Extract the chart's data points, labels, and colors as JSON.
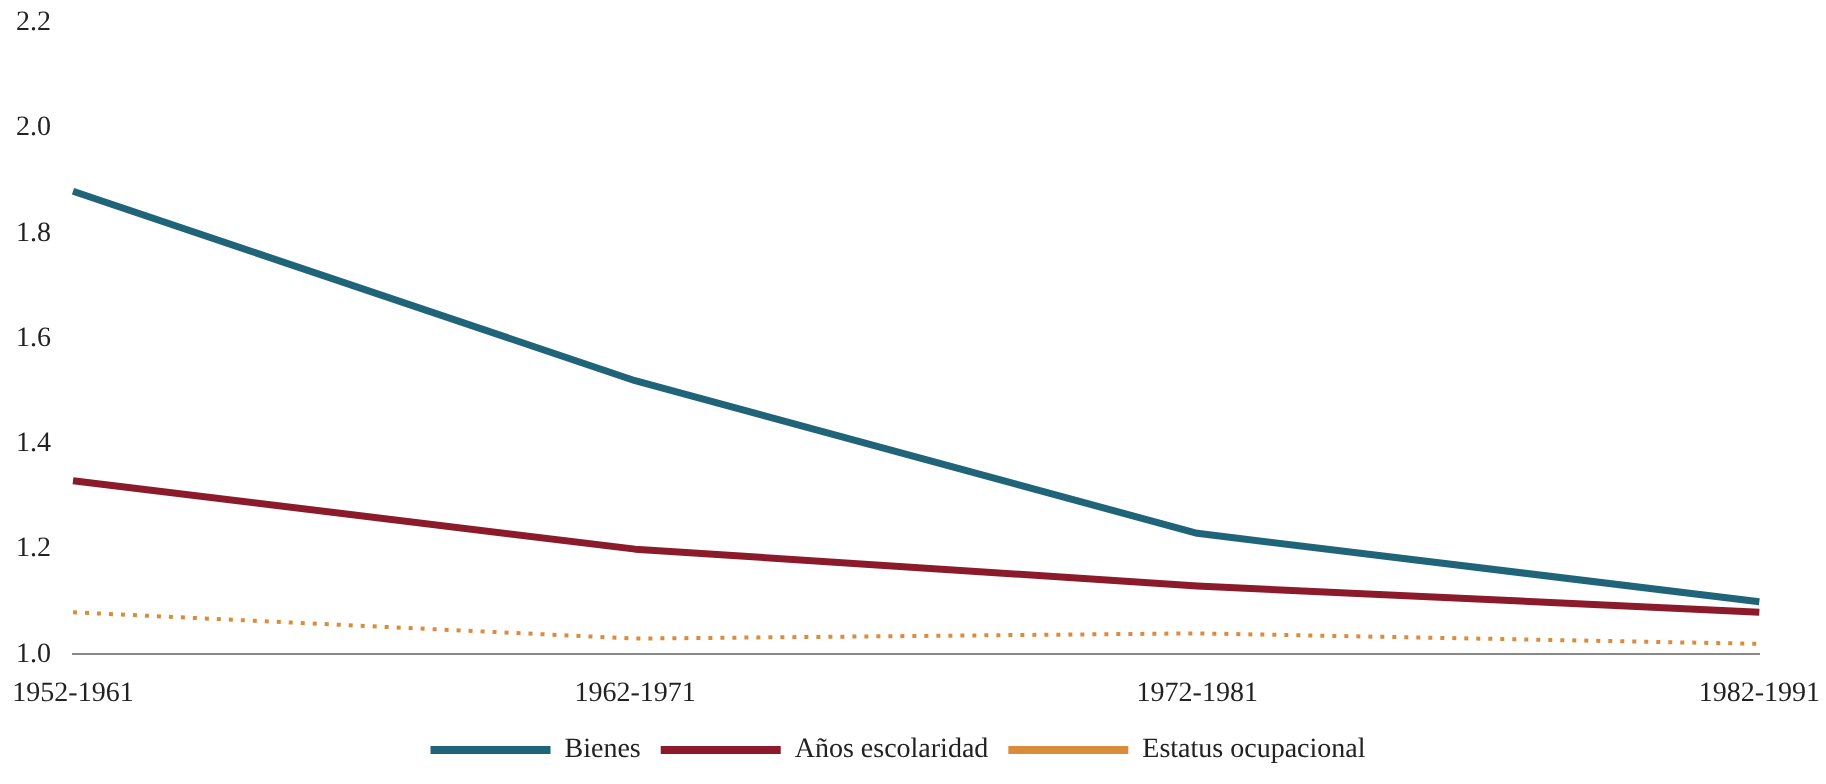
{
  "chart_data": {
    "type": "line",
    "categories": [
      "1952-1961",
      "1962-1971",
      "1972-1981",
      "1982-1991"
    ],
    "series": [
      {
        "name": "Bienes",
        "color": "#1f6479",
        "values": [
          1.88,
          1.52,
          1.23,
          1.1
        ],
        "line_style": "solid"
      },
      {
        "name": "Años escolaridad",
        "color": "#8b1a2b",
        "values": [
          1.33,
          1.2,
          1.13,
          1.08
        ],
        "line_style": "solid"
      },
      {
        "name": "Estatus ocupacional",
        "color": "#d98c3c",
        "values": [
          1.08,
          1.03,
          1.04,
          1.02
        ],
        "line_style": "dotted"
      }
    ],
    "ylim": [
      1.0,
      2.2
    ],
    "yticks": [
      {
        "value": 1.0,
        "label": "1.0"
      },
      {
        "value": 1.2,
        "label": "1.2"
      },
      {
        "value": 1.4,
        "label": "1.4"
      },
      {
        "value": 1.6,
        "label": "1.6"
      },
      {
        "value": 1.8,
        "label": "1.8"
      },
      {
        "value": 2.0,
        "label": "2.0"
      },
      {
        "value": 2.2,
        "label": "2.2"
      }
    ],
    "grid": false,
    "legend": "bottom",
    "marker": "none"
  }
}
